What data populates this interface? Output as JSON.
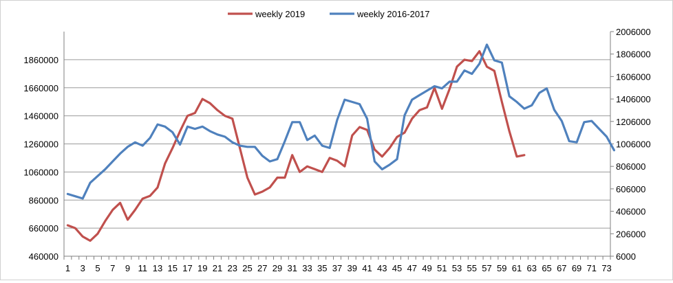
{
  "chart_data": {
    "type": "line",
    "title": "",
    "xlabel": "",
    "ylabel": "",
    "x_ticks": [
      1,
      3,
      5,
      7,
      9,
      11,
      13,
      15,
      17,
      19,
      21,
      23,
      25,
      27,
      29,
      31,
      33,
      35,
      37,
      39,
      41,
      43,
      45,
      47,
      49,
      51,
      53,
      55,
      57,
      59,
      61,
      63,
      65,
      67,
      69,
      71,
      73
    ],
    "xlim": [
      1,
      73
    ],
    "y_left": {
      "lim": [
        460000,
        2060000
      ],
      "ticks": [
        460000,
        660000,
        860000,
        1060000,
        1260000,
        1460000,
        1660000,
        1860000
      ]
    },
    "y_right": {
      "lim": [
        6000,
        2006000
      ],
      "ticks": [
        6000,
        206000,
        406000,
        606000,
        806000,
        1006000,
        1206000,
        1406000,
        1606000,
        1806000,
        2006000
      ]
    },
    "grid": true,
    "legend_position": "top-center",
    "series": [
      {
        "name": "weekly 2019",
        "axis": "left",
        "color": "#c0504d",
        "values": [
          680000,
          660000,
          600000,
          570000,
          620000,
          710000,
          790000,
          840000,
          720000,
          790000,
          870000,
          890000,
          950000,
          1120000,
          1230000,
          1350000,
          1460000,
          1480000,
          1580000,
          1550000,
          1500000,
          1460000,
          1440000,
          1230000,
          1020000,
          900000,
          920000,
          950000,
          1020000,
          1020000,
          1180000,
          1060000,
          1100000,
          1080000,
          1060000,
          1160000,
          1140000,
          1100000,
          1320000,
          1380000,
          1360000,
          1220000,
          1170000,
          1230000,
          1310000,
          1340000,
          1440000,
          1500000,
          1520000,
          1660000,
          1510000,
          1650000,
          1810000,
          1860000,
          1850000,
          1920000,
          1810000,
          1780000,
          1560000,
          1350000,
          1170000,
          1180000
        ]
      },
      {
        "name": "weekly 2016-2017",
        "axis": "right",
        "color": "#4f81bd",
        "values": [
          560000,
          540000,
          520000,
          660000,
          720000,
          780000,
          850000,
          920000,
          980000,
          1020000,
          990000,
          1060000,
          1180000,
          1160000,
          1110000,
          1000000,
          1160000,
          1140000,
          1160000,
          1120000,
          1090000,
          1070000,
          1020000,
          990000,
          980000,
          980000,
          900000,
          850000,
          870000,
          1030000,
          1200000,
          1200000,
          1040000,
          1080000,
          990000,
          970000,
          1220000,
          1400000,
          1380000,
          1360000,
          1230000,
          850000,
          780000,
          820000,
          870000,
          1260000,
          1400000,
          1440000,
          1480000,
          1520000,
          1500000,
          1560000,
          1560000,
          1660000,
          1630000,
          1720000,
          1890000,
          1750000,
          1730000,
          1430000,
          1380000,
          1320000,
          1350000,
          1460000,
          1500000,
          1310000,
          1210000,
          1030000,
          1020000,
          1200000,
          1210000,
          1140000,
          1070000,
          950000
        ]
      }
    ]
  }
}
